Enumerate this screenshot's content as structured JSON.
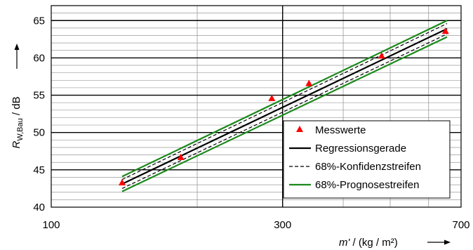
{
  "chart_data": {
    "type": "scatter",
    "x_scale": "log",
    "xlim": [
      100,
      700
    ],
    "ylim": [
      40,
      67
    ],
    "x_ticks": [
      100,
      300,
      700
    ],
    "x_tick_labels": [
      "100",
      "300",
      "700"
    ],
    "y_ticks": [
      40,
      45,
      50,
      55,
      60,
      65
    ],
    "y_tick_labels": [
      "40",
      "45",
      "50",
      "55",
      "60",
      "65"
    ],
    "x_minor_gridlines": [
      200,
      400,
      500,
      600
    ],
    "y_minor_step": 1,
    "grid": true,
    "ylabel": {
      "symbol": "R",
      "subscript": "W,Bau",
      "unit": "/ dB"
    },
    "xlabel": "m' / (kg / m²)",
    "legend_position": "bottom-right",
    "series": [
      {
        "name": "Messwerte",
        "kind": "marker",
        "color": "#ff0000",
        "points": [
          {
            "x": 140,
            "y": 43.2
          },
          {
            "x": 185,
            "y": 46.6
          },
          {
            "x": 285,
            "y": 54.5
          },
          {
            "x": 340,
            "y": 56.5
          },
          {
            "x": 480,
            "y": 60.2
          },
          {
            "x": 650,
            "y": 63.5
          }
        ]
      },
      {
        "name": "Regressionsgerade",
        "kind": "line",
        "color": "#000000",
        "dash": "solid",
        "points": [
          {
            "x": 140,
            "y": 43.1
          },
          {
            "x": 655,
            "y": 63.9
          }
        ]
      },
      {
        "name": "68%-Konfidenzstreifen",
        "kind": "line",
        "color": "#000000",
        "dash": "dashed",
        "points": [
          {
            "x": 140,
            "y": 43.7
          },
          {
            "x": 655,
            "y": 64.6
          }
        ]
      },
      {
        "name": "68%-Konfidenzstreifen",
        "kind": "line",
        "color": "#000000",
        "dash": "dashed",
        "legend": false,
        "points": [
          {
            "x": 140,
            "y": 42.5
          },
          {
            "x": 655,
            "y": 63.2
          }
        ]
      },
      {
        "name": "68%-Prognosestreifen",
        "kind": "line",
        "color": "#1a8a1a",
        "dash": "solid",
        "points": [
          {
            "x": 140,
            "y": 44.1
          },
          {
            "x": 655,
            "y": 65.0
          }
        ]
      },
      {
        "name": "68%-Prognosestreifen",
        "kind": "line",
        "color": "#1a8a1a",
        "dash": "solid",
        "legend": false,
        "points": [
          {
            "x": 140,
            "y": 42.1
          },
          {
            "x": 655,
            "y": 62.8
          }
        ]
      }
    ]
  }
}
